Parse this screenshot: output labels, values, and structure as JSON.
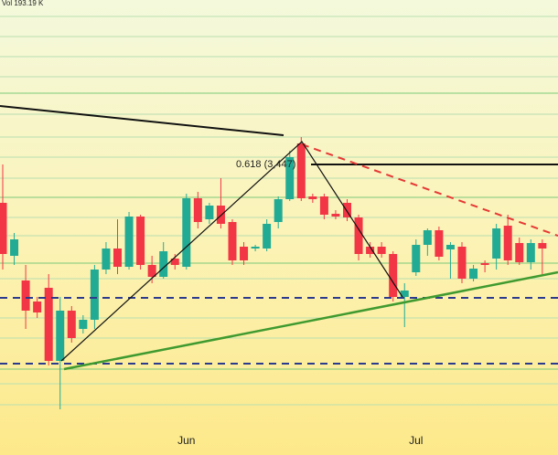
{
  "chart_data": {
    "type": "candlestick",
    "volume_label": "Vol 193.19 K",
    "fib_label": "0.618 (3,447)",
    "x": [
      null,
      null,
      null,
      null,
      null,
      null,
      null,
      null,
      null,
      null,
      null,
      null,
      null,
      null,
      null,
      null,
      "Jun",
      null,
      null,
      null,
      null,
      null,
      null,
      null,
      null,
      null,
      null,
      null,
      null,
      null,
      null,
      null,
      null,
      null,
      null,
      null,
      "Jul",
      null,
      null,
      null,
      null,
      null,
      null,
      null,
      null,
      null,
      null,
      null
    ],
    "open": [
      3363,
      3247,
      3193,
      3147,
      3177,
      3017,
      3127,
      3087,
      3107,
      3217,
      3263,
      3223,
      3333,
      3227,
      3201,
      3241,
      3223,
      3373,
      3327,
      3357,
      3321,
      3267,
      3263,
      3263,
      3321,
      3371,
      3493,
      3377,
      3377,
      3339,
      3363,
      3331,
      3267,
      3267,
      3251,
      3157,
      3211,
      3271,
      3303,
      3261,
      3267,
      3197,
      3231,
      3241,
      3313,
      3275,
      3233,
      3275
    ],
    "high": [
      3447,
      3297,
      3227,
      3157,
      3207,
      3157,
      3137,
      3117,
      3227,
      3277,
      3327,
      3343,
      3337,
      3247,
      3277,
      3251,
      3383,
      3387,
      3363,
      3417,
      3327,
      3277,
      3271,
      3327,
      3377,
      3477,
      3507,
      3383,
      3383,
      3347,
      3371,
      3337,
      3277,
      3277,
      3257,
      3187,
      3283,
      3307,
      3311,
      3277,
      3277,
      3227,
      3237,
      3317,
      3337,
      3287,
      3283,
      3283
    ],
    "low": [
      3217,
      3227,
      3087,
      3111,
      3007,
      2911,
      3057,
      3077,
      3087,
      3207,
      3207,
      3217,
      3217,
      3187,
      3197,
      3217,
      3217,
      3307,
      3317,
      3307,
      3227,
      3227,
      3257,
      3257,
      3307,
      3367,
      3367,
      3363,
      3327,
      3327,
      3323,
      3237,
      3243,
      3243,
      3147,
      3091,
      3203,
      3247,
      3237,
      3197,
      3187,
      3191,
      3211,
      3217,
      3227,
      3227,
      3217,
      3207
    ],
    "close": [
      3251,
      3283,
      3127,
      3123,
      3017,
      3127,
      3067,
      3107,
      3217,
      3263,
      3223,
      3333,
      3227,
      3201,
      3257,
      3227,
      3373,
      3321,
      3357,
      3317,
      3237,
      3237,
      3267,
      3317,
      3371,
      3463,
      3373,
      3371,
      3337,
      3333,
      3331,
      3251,
      3251,
      3251,
      3157,
      3171,
      3271,
      3303,
      3245,
      3271,
      3197,
      3219,
      3227,
      3307,
      3237,
      3233,
      3275,
      3263
    ],
    "up_color": "#22ab94",
    "down_color": "#f23645",
    "ylim": [
      2811,
      3807
    ]
  }
}
